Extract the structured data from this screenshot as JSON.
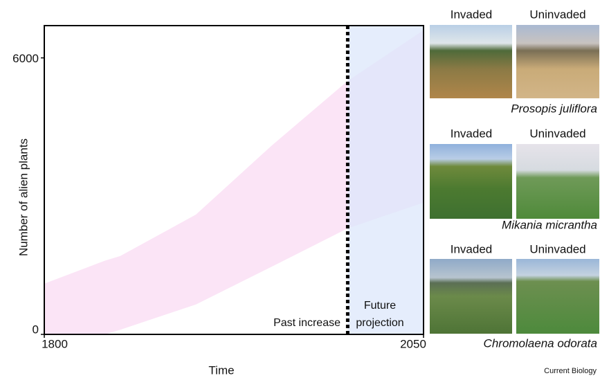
{
  "chart_data": {
    "type": "band",
    "xlabel": "Time",
    "ylabel": "Number of alien plants",
    "xlim": [
      1800,
      2050
    ],
    "ylim": [
      0,
      6700
    ],
    "xticks": [
      1800,
      2050
    ],
    "yticks": [
      0,
      6000
    ],
    "band": {
      "x": [
        1800,
        1840,
        1850,
        1900,
        1950,
        2000,
        2050
      ],
      "lower": [
        0,
        0,
        100,
        650,
        1470,
        2300,
        2860
      ],
      "upper": [
        1100,
        1600,
        1700,
        2600,
        4100,
        5500,
        6600
      ],
      "color": "#fbe4f6"
    },
    "projection_start": 2000,
    "projection_color": "#dce7fb",
    "past_label": "Past increase",
    "future_label": "Future projection"
  },
  "panels": [
    {
      "labels": [
        "Invaded",
        "Uninvaded"
      ],
      "species": "Prosopis juliflora"
    },
    {
      "labels": [
        "Invaded",
        "Uninvaded"
      ],
      "species": "Mikania micrantha"
    },
    {
      "labels": [
        "Invaded",
        "Uninvaded"
      ],
      "species": "Chromolaena odorata"
    }
  ],
  "footer": "Current Biology"
}
